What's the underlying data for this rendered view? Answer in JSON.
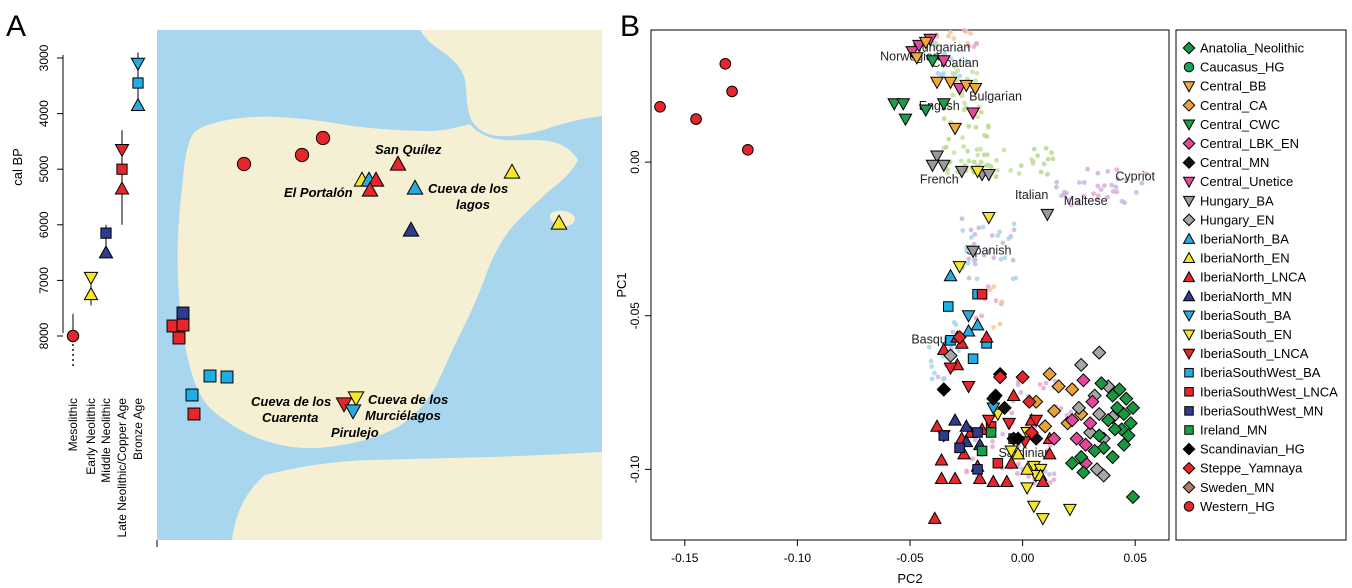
{
  "figure": {
    "panel_a_label": "A",
    "panel_b_label": "B"
  },
  "colors": {
    "Anatolia_Neolithic": "#1a9641",
    "Caucasus_HG": "#19a25a",
    "Central_BB": "#f2a93b",
    "Central_CA": "#e6a23c",
    "Central_CWC": "#1c9e48",
    "Central_LBK_EN": "#e0489a",
    "Central_MN": "#111111",
    "Central_Unetice": "#e54894",
    "Hungary_BA": "#9a9a9a",
    "Hungary_EN": "#a6a6a6",
    "IberiaNorth_BA": "#2aa9e0",
    "IberiaNorth_EN": "#f5e62a",
    "IberiaNorth_LNCA": "#e5262a",
    "IberiaNorth_MN": "#2e3b8f",
    "IberiaSouth_BA": "#2aa9e0",
    "IberiaSouth_EN": "#f5e62a",
    "IberiaSouth_LNCA": "#e5262a",
    "IberiaSouthWest_BA": "#1eaee4",
    "IberiaSouthWest_LNCA": "#e5262a",
    "IberiaSouthWest_MN": "#2e3b8f",
    "Ireland_MN": "#1c9e48",
    "Scandinavian_HG": "#000000",
    "Steppe_Yamnaya": "#e5262a",
    "Sweden_MN": "#b07a6a",
    "Western_HG": "#e5262a",
    "sea": "#a8d6ee",
    "land": "#f5f0d4"
  },
  "panel_a": {
    "timeline": {
      "axis_title": "cal BP",
      "ticks": [
        "3000",
        "4000",
        "5000",
        "6000",
        "7000",
        "8000"
      ],
      "period_labels": [
        "Mesolithic",
        "Early Neolithic",
        "Middle Neolithic",
        "Late Neolithic/Copper Age",
        "Bronze Age"
      ],
      "markers": [
        {
          "pop": "Western_HG",
          "shape": "circle",
          "period": 0,
          "date": 8000,
          "line": [
            7600,
            8000
          ]
        },
        {
          "pop": "IberiaSouth_EN",
          "shape": "tri-down",
          "period": 1,
          "date": 6950,
          "line": [
            6900,
            7450
          ]
        },
        {
          "pop": "IberiaNorth_EN",
          "shape": "tri-up",
          "period": 1,
          "date": 7250,
          "line": [
            6900,
            7450
          ]
        },
        {
          "pop": "IberiaSouthWest_MN",
          "shape": "square",
          "period": 2,
          "date": 6150,
          "line": [
            6000,
            6550
          ]
        },
        {
          "pop": "IberiaNorth_MN",
          "shape": "tri-up",
          "period": 2,
          "date": 6500,
          "line": [
            6000,
            6550
          ]
        },
        {
          "pop": "IberiaSouth_LNCA",
          "shape": "tri-down",
          "period": 3,
          "date": 4650,
          "line": [
            4300,
            6000
          ]
        },
        {
          "pop": "IberiaSouthWest_LNCA",
          "shape": "square",
          "period": 3,
          "date": 5000,
          "line": [
            4300,
            6000
          ]
        },
        {
          "pop": "IberiaNorth_LNCA",
          "shape": "tri-up",
          "period": 3,
          "date": 5350,
          "line": [
            4300,
            6000
          ]
        },
        {
          "pop": "IberiaSouth_BA",
          "shape": "tri-down",
          "period": 4,
          "date": 3100,
          "line": [
            2900,
            3900
          ]
        },
        {
          "pop": "IberiaSouthWest_BA",
          "shape": "square",
          "period": 4,
          "date": 3450,
          "line": [
            2900,
            3900
          ]
        },
        {
          "pop": "IberiaNorth_BA",
          "shape": "tri-up",
          "period": 4,
          "date": 3850,
          "line": [
            2900,
            3900
          ]
        }
      ]
    },
    "sites": [
      "San Quílez",
      "El Portalón",
      "Cueva de los",
      "lagos",
      "Cueva de los",
      "Cuarenta",
      "Cueva de los",
      "Murciélagos",
      "Pirulejo"
    ]
  },
  "chart_data": {
    "type": "scatter",
    "xlabel": "PC2",
    "ylabel": "PC1",
    "xlim": [
      -0.165,
      0.065
    ],
    "ylim": [
      -0.123,
      0.043
    ],
    "xticks": [
      -0.15,
      -0.1,
      -0.05,
      0.0,
      0.05
    ],
    "xtick_labels": [
      "-0.15",
      "-0.10",
      "-0.05",
      "0.00",
      "0.05"
    ],
    "yticks": [
      0.0,
      -0.05,
      -0.1
    ],
    "ytick_labels": [
      "0.00",
      "-0.05",
      "-0.10"
    ],
    "modern_population_labels": [
      {
        "text": "Hungarian",
        "x": -0.036,
        "y": 0.036
      },
      {
        "text": "Norwegian",
        "x": -0.05,
        "y": 0.033
      },
      {
        "text": "Croatian",
        "x": -0.03,
        "y": 0.031
      },
      {
        "text": "Bulgarian",
        "x": -0.012,
        "y": 0.02
      },
      {
        "text": "English",
        "x": -0.037,
        "y": 0.017
      },
      {
        "text": "French",
        "x": -0.037,
        "y": -0.007
      },
      {
        "text": "Cypriot",
        "x": 0.05,
        "y": -0.006
      },
      {
        "text": "Italian",
        "x": 0.004,
        "y": -0.012
      },
      {
        "text": "Maltese",
        "x": 0.028,
        "y": -0.014
      },
      {
        "text": "Spanish",
        "x": -0.015,
        "y": -0.03
      },
      {
        "text": "Basque",
        "x": -0.04,
        "y": -0.059
      },
      {
        "text": "Sardinian",
        "x": 0.001,
        "y": -0.096
      }
    ],
    "legend": [
      {
        "name": "Anatolia_Neolithic",
        "shape": "diamond"
      },
      {
        "name": "Caucasus_HG",
        "shape": "circle"
      },
      {
        "name": "Central_BB",
        "shape": "tri-down"
      },
      {
        "name": "Central_CA",
        "shape": "diamond"
      },
      {
        "name": "Central_CWC",
        "shape": "tri-down"
      },
      {
        "name": "Central_LBK_EN",
        "shape": "diamond"
      },
      {
        "name": "Central_MN",
        "shape": "diamond"
      },
      {
        "name": "Central_Unetice",
        "shape": "tri-down"
      },
      {
        "name": "Hungary_BA",
        "shape": "tri-down"
      },
      {
        "name": "Hungary_EN",
        "shape": "diamond"
      },
      {
        "name": "IberiaNorth_BA",
        "shape": "tri-up"
      },
      {
        "name": "IberiaNorth_EN",
        "shape": "tri-up"
      },
      {
        "name": "IberiaNorth_LNCA",
        "shape": "tri-up"
      },
      {
        "name": "IberiaNorth_MN",
        "shape": "tri-up"
      },
      {
        "name": "IberiaSouth_BA",
        "shape": "tri-down"
      },
      {
        "name": "IberiaSouth_EN",
        "shape": "tri-down"
      },
      {
        "name": "IberiaSouth_LNCA",
        "shape": "tri-down"
      },
      {
        "name": "IberiaSouthWest_BA",
        "shape": "square"
      },
      {
        "name": "IberiaSouthWest_LNCA",
        "shape": "square"
      },
      {
        "name": "IberiaSouthWest_MN",
        "shape": "square"
      },
      {
        "name": "Ireland_MN",
        "shape": "square"
      },
      {
        "name": "Scandinavian_HG",
        "shape": "diamond"
      },
      {
        "name": "Steppe_Yamnaya",
        "shape": "diamond"
      },
      {
        "name": "Sweden_MN",
        "shape": "diamond"
      },
      {
        "name": "Western_HG",
        "shape": "circle"
      }
    ],
    "series": [
      {
        "name": "Western_HG",
        "points": [
          [
            -0.161,
            0.018
          ],
          [
            -0.145,
            0.014
          ],
          [
            -0.132,
            0.032
          ],
          [
            -0.129,
            0.023
          ],
          [
            -0.122,
            0.004
          ]
        ]
      },
      {
        "name": "Central_Unetice",
        "points": [
          [
            -0.049,
            0.036
          ],
          [
            -0.046,
            0.038
          ],
          [
            -0.041,
            0.04
          ],
          [
            -0.035,
            0.033
          ],
          [
            -0.028,
            0.024
          ],
          [
            -0.022,
            0.016
          ]
        ]
      },
      {
        "name": "Central_BB",
        "points": [
          [
            -0.047,
            0.034
          ],
          [
            -0.043,
            0.039
          ],
          [
            -0.038,
            0.026
          ],
          [
            -0.032,
            0.026
          ],
          [
            -0.025,
            0.025
          ],
          [
            -0.021,
            0.024
          ],
          [
            -0.03,
            0.011
          ]
        ]
      },
      {
        "name": "Central_CWC",
        "points": [
          [
            -0.057,
            0.019
          ],
          [
            -0.053,
            0.019
          ],
          [
            -0.052,
            0.014
          ],
          [
            -0.043,
            0.017
          ],
          [
            -0.04,
            0.033
          ],
          [
            -0.035,
            0.019
          ]
        ]
      },
      {
        "name": "Hungary_BA",
        "points": [
          [
            -0.038,
            0.002
          ],
          [
            -0.04,
            -0.001
          ],
          [
            -0.035,
            -0.001
          ],
          [
            -0.027,
            -0.003
          ],
          [
            -0.018,
            -0.004
          ],
          [
            -0.015,
            -0.004
          ],
          [
            0.011,
            -0.017
          ],
          [
            -0.022,
            -0.029
          ]
        ]
      },
      {
        "name": "IberiaSouth_EN",
        "points": [
          [
            -0.02,
            -0.003
          ],
          [
            -0.015,
            -0.018
          ],
          [
            -0.028,
            -0.034
          ],
          [
            -0.011,
            -0.082
          ],
          [
            0.002,
            -0.088
          ],
          [
            -0.005,
            -0.094
          ],
          [
            0.005,
            -0.099
          ],
          [
            0.008,
            -0.1
          ],
          [
            0.006,
            -0.102
          ],
          [
            0.002,
            -0.106
          ],
          [
            0.005,
            -0.112
          ],
          [
            0.009,
            -0.116
          ],
          [
            0.021,
            -0.113
          ]
        ]
      },
      {
        "name": "IberiaNorth_EN",
        "points": [
          [
            -0.002,
            -0.095
          ],
          [
            0.002,
            -0.1
          ],
          [
            0.008,
            -0.102
          ]
        ]
      },
      {
        "name": "IberiaNorth_BA",
        "points": [
          [
            -0.032,
            -0.037
          ],
          [
            -0.02,
            -0.053
          ],
          [
            -0.024,
            -0.055
          ]
        ]
      },
      {
        "name": "IberiaSouth_BA",
        "points": [
          [
            -0.024,
            -0.05
          ],
          [
            -0.013,
            -0.08
          ],
          [
            -0.035,
            -0.089
          ]
        ]
      },
      {
        "name": "IberiaSouthWest_BA",
        "points": [
          [
            -0.02,
            -0.043
          ],
          [
            -0.033,
            -0.047
          ],
          [
            -0.016,
            -0.059
          ],
          [
            -0.022,
            -0.064
          ],
          [
            -0.032,
            -0.058
          ]
        ]
      },
      {
        "name": "IberiaSouthWest_LNCA",
        "points": [
          [
            -0.018,
            -0.043
          ],
          [
            -0.014,
            -0.086
          ],
          [
            -0.004,
            -0.09
          ],
          [
            -0.011,
            -0.098
          ]
        ]
      },
      {
        "name": "IberiaNorth_LNCA",
        "points": [
          [
            -0.035,
            -0.061
          ],
          [
            -0.029,
            -0.057
          ],
          [
            -0.016,
            -0.057
          ],
          [
            -0.038,
            -0.086
          ],
          [
            -0.036,
            -0.097
          ],
          [
            -0.036,
            -0.103
          ],
          [
            -0.03,
            -0.103
          ],
          [
            -0.027,
            -0.09
          ],
          [
            -0.023,
            -0.088
          ],
          [
            -0.018,
            -0.087
          ],
          [
            -0.013,
            -0.104
          ],
          [
            -0.02,
            -0.099
          ],
          [
            -0.026,
            -0.095
          ],
          [
            -0.007,
            -0.104
          ],
          [
            -0.005,
            -0.098
          ],
          [
            0.009,
            -0.104
          ],
          [
            0.012,
            -0.09
          ],
          [
            0.004,
            -0.084
          ],
          [
            -0.004,
            -0.076
          ],
          [
            0.012,
            -0.095
          ],
          [
            -0.039,
            -0.116
          ],
          [
            -0.019,
            -0.103
          ],
          [
            -0.029,
            -0.066
          ],
          [
            -0.027,
            -0.059
          ]
        ]
      },
      {
        "name": "IberiaSouth_LNCA",
        "points": [
          [
            -0.032,
            -0.067
          ],
          [
            -0.024,
            -0.073
          ],
          [
            -0.015,
            -0.084
          ],
          [
            0.006,
            -0.084
          ],
          [
            0.001,
            -0.091
          ],
          [
            -0.006,
            -0.085
          ]
        ]
      },
      {
        "name": "IberiaNorth_MN",
        "points": [
          [
            -0.025,
            -0.086
          ],
          [
            -0.03,
            -0.084
          ],
          [
            -0.025,
            -0.091
          ],
          [
            -0.019,
            -0.092
          ]
        ]
      },
      {
        "name": "IberiaSouthWest_MN",
        "points": [
          [
            -0.035,
            -0.089
          ],
          [
            -0.02,
            -0.088
          ],
          [
            -0.028,
            -0.093
          ],
          [
            -0.02,
            -0.1
          ]
        ]
      },
      {
        "name": "Ireland_MN",
        "points": [
          [
            -0.014,
            -0.088
          ],
          [
            -0.018,
            -0.094
          ]
        ]
      },
      {
        "name": "Central_MN",
        "points": [
          [
            -0.035,
            -0.074
          ],
          [
            -0.01,
            -0.069
          ],
          [
            -0.008,
            -0.08
          ],
          [
            -0.013,
            -0.077
          ],
          [
            -0.004,
            -0.09
          ],
          [
            0.006,
            -0.09
          ]
        ]
      },
      {
        "name": "Scandinavian_HG",
        "points": [
          [
            -0.035,
            -0.074
          ],
          [
            -0.012,
            -0.076
          ],
          [
            -0.002,
            -0.09
          ]
        ]
      },
      {
        "name": "Central_CA",
        "points": [
          [
            0.012,
            -0.069
          ],
          [
            0.016,
            -0.073
          ],
          [
            0.006,
            -0.078
          ],
          [
            0.014,
            -0.081
          ],
          [
            0.01,
            -0.086
          ],
          [
            0.02,
            -0.085
          ],
          [
            0.022,
            -0.074
          ],
          [
            0.026,
            -0.082
          ]
        ]
      },
      {
        "name": "Hungary_EN",
        "points": [
          [
            0.026,
            -0.066
          ],
          [
            0.034,
            -0.062
          ],
          [
            0.038,
            -0.073
          ],
          [
            0.032,
            -0.076
          ],
          [
            0.025,
            -0.08
          ],
          [
            0.034,
            -0.082
          ],
          [
            0.04,
            -0.083
          ],
          [
            0.036,
            -0.09
          ],
          [
            0.03,
            -0.088
          ],
          [
            0.033,
            -0.1
          ],
          [
            0.036,
            -0.102
          ],
          [
            -0.032,
            -0.063
          ]
        ]
      },
      {
        "name": "Central_LBK_EN",
        "points": [
          [
            0.027,
            -0.071
          ],
          [
            0.031,
            -0.078
          ],
          [
            0.03,
            -0.085
          ],
          [
            0.028,
            -0.092
          ],
          [
            0.028,
            -0.098
          ],
          [
            0.024,
            -0.09
          ],
          [
            0.022,
            -0.084
          ],
          [
            0.014,
            -0.09
          ]
        ]
      },
      {
        "name": "Anatolia_Neolithic",
        "points": [
          [
            0.043,
            -0.074
          ],
          [
            0.046,
            -0.077
          ],
          [
            0.049,
            -0.08
          ],
          [
            0.045,
            -0.082
          ],
          [
            0.042,
            -0.08
          ],
          [
            0.04,
            -0.076
          ],
          [
            0.048,
            -0.085
          ],
          [
            0.044,
            -0.087
          ],
          [
            0.041,
            -0.087
          ],
          [
            0.038,
            -0.084
          ],
          [
            0.045,
            -0.092
          ],
          [
            0.04,
            -0.096
          ],
          [
            0.036,
            -0.093
          ],
          [
            0.032,
            -0.094
          ],
          [
            0.026,
            -0.096
          ],
          [
            0.049,
            -0.109
          ],
          [
            0.027,
            -0.101
          ],
          [
            0.022,
            -0.098
          ],
          [
            0.047,
            -0.089
          ],
          [
            0.034,
            -0.089
          ],
          [
            0.035,
            -0.072
          ]
        ]
      },
      {
        "name": "Steppe_Yamnaya",
        "points": [
          [
            -0.01,
            -0.07
          ],
          [
            0.003,
            -0.078
          ],
          [
            0.004,
            -0.088
          ],
          [
            0.0,
            -0.07
          ],
          [
            -0.028,
            -0.057
          ]
        ]
      }
    ]
  },
  "modern_background_colors": [
    "#b7d98a",
    "#c6e0a0",
    "#a9d5ec",
    "#c9b6de",
    "#e7a8cf",
    "#f3c99a"
  ]
}
